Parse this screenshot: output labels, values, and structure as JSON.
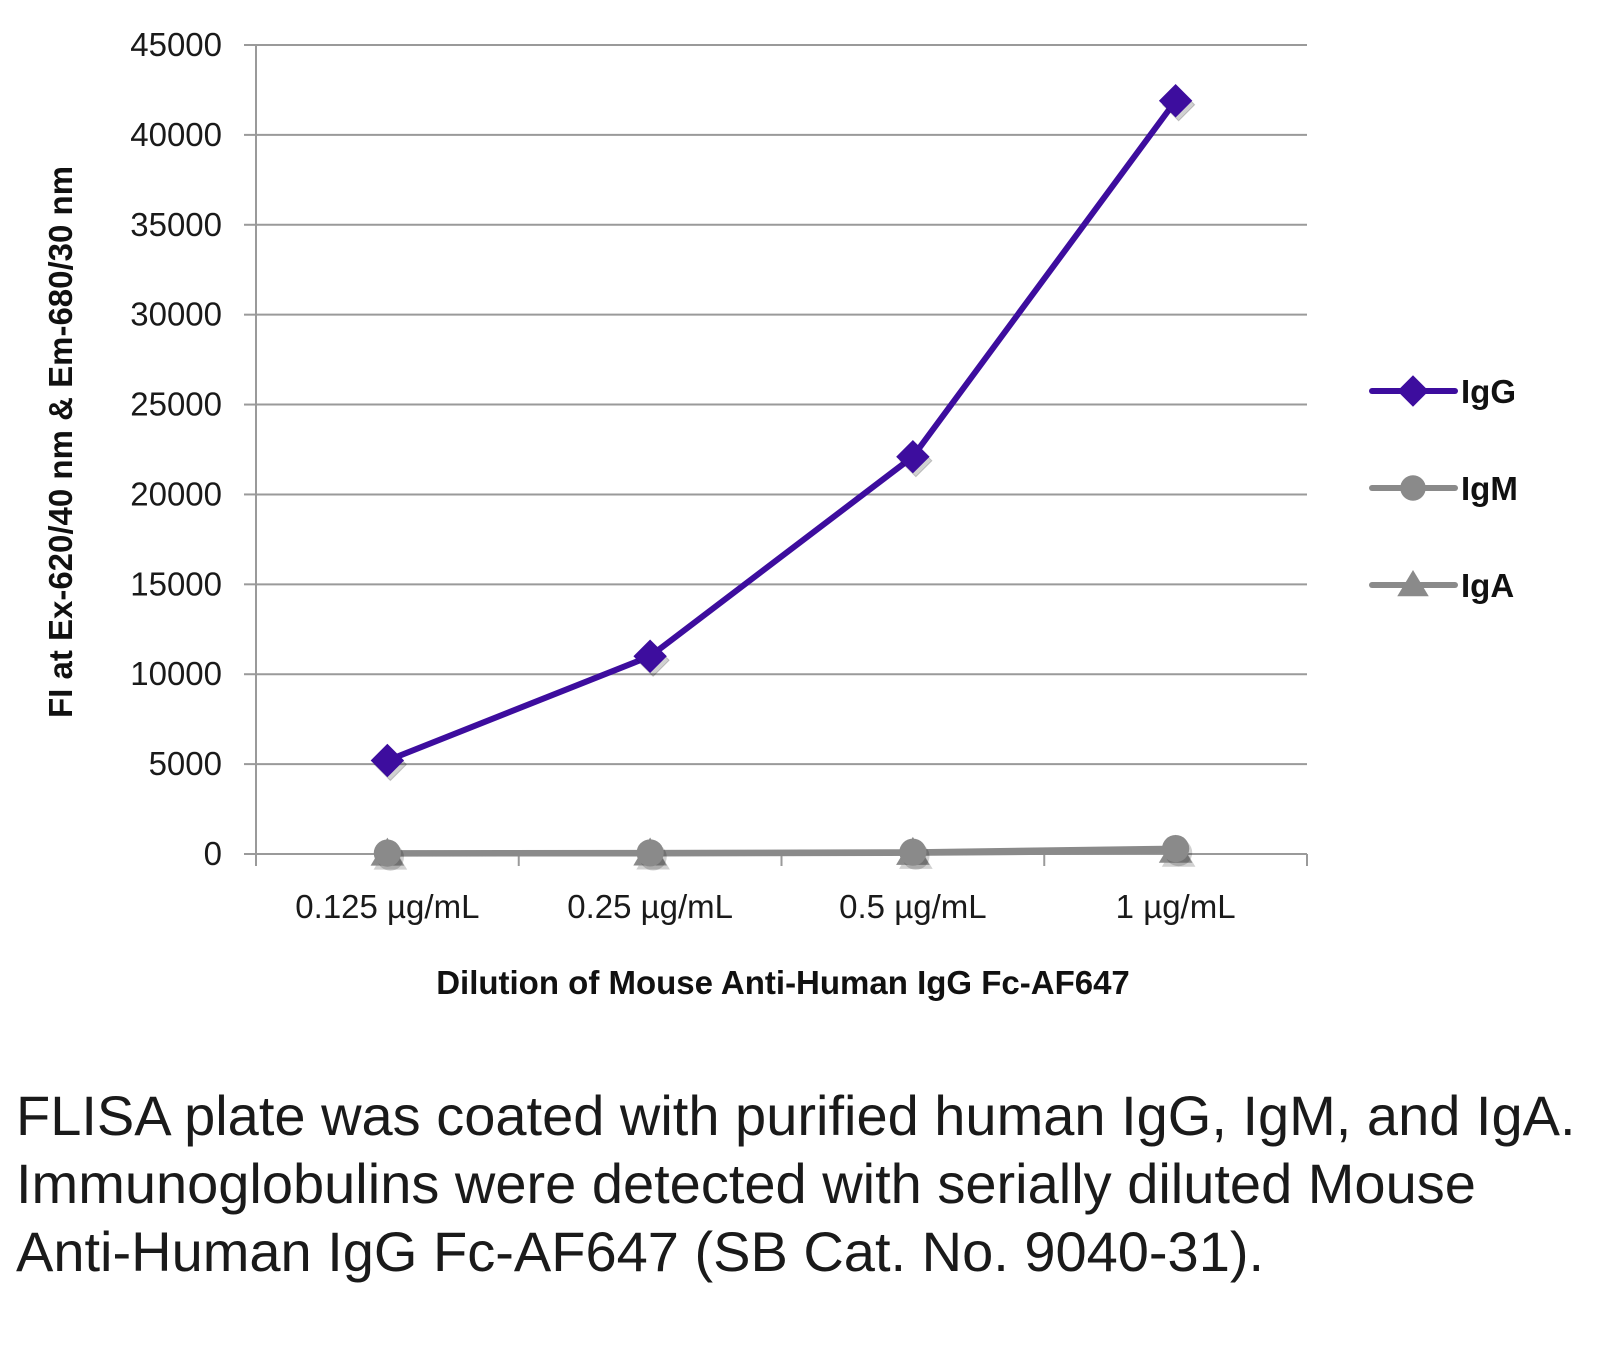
{
  "chart_data": {
    "type": "line",
    "categories": [
      "0.125 µg/mL",
      "0.25 µg/mL",
      "0.5 µg/mL",
      "1 µg/mL"
    ],
    "series": [
      {
        "name": "IgG",
        "values": [
          5200,
          11000,
          22100,
          41900
        ],
        "color": "#3d0d9e",
        "marker": "diamond"
      },
      {
        "name": "IgM",
        "values": [
          50,
          60,
          100,
          300
        ],
        "color": "#8a8a8a",
        "marker": "circle"
      },
      {
        "name": "IgA",
        "values": [
          20,
          30,
          60,
          180
        ],
        "color": "#8a8a8a",
        "marker": "triangle"
      }
    ],
    "xlabel": "Dilution of Mouse Anti-Human IgG Fc-AF647",
    "ylabel": "FI at Ex-620/40 nm & Em-680/30 nm",
    "ylim": [
      0,
      45000
    ],
    "yticks": [
      0,
      5000,
      10000,
      15000,
      20000,
      25000,
      30000,
      35000,
      40000,
      45000
    ],
    "grid": true,
    "legend_position": "right"
  },
  "caption": "FLISA plate was coated with purified human IgG, IgM, and IgA.  Immunoglobulins were detected with serially diluted Mouse Anti-Human IgG Fc-AF647 (SB Cat. No. 9040-31)."
}
